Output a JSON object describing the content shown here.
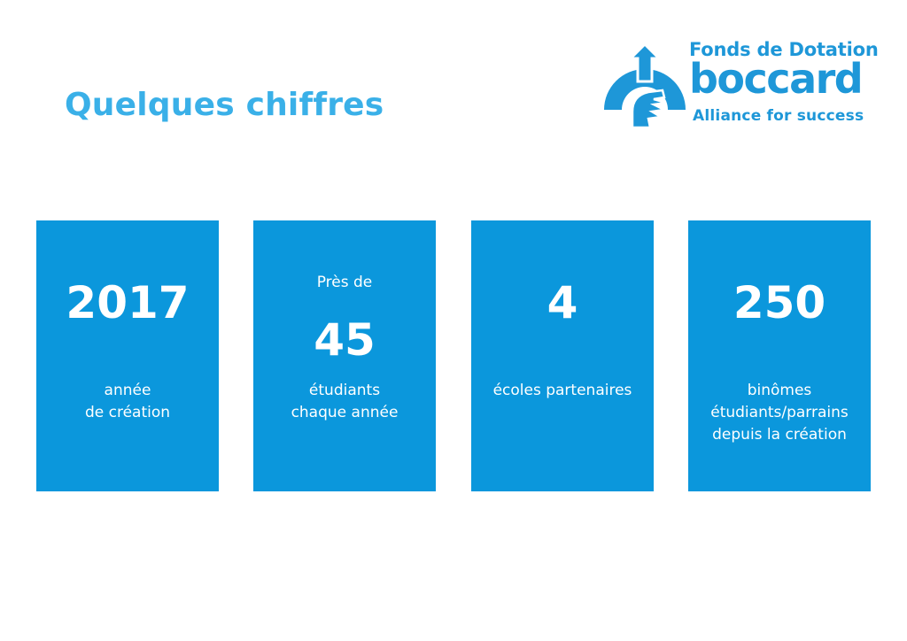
{
  "page": {
    "title": "Quelques chiffres"
  },
  "logo": {
    "line1": "Fonds de Dotation",
    "line2": "boccard",
    "line3": "Alliance for success",
    "icon": "rising-sun-arrow-logo-icon",
    "color": "#1e97d8"
  },
  "colors": {
    "title": "#3ab0e8",
    "card_background": "#0b97dc",
    "card_text": "#ffffff"
  },
  "stats": [
    {
      "prefix": "",
      "number": "2017",
      "label_lines": [
        "année",
        "de création"
      ]
    },
    {
      "prefix": "Près de",
      "number": "45",
      "label_lines": [
        "étudiants",
        "chaque année"
      ]
    },
    {
      "prefix": "",
      "number": "4",
      "label_lines": [
        "écoles partenaires"
      ]
    },
    {
      "prefix": "",
      "number": "250",
      "label_lines": [
        "binômes",
        "étudiants/parrains",
        "depuis la création"
      ]
    }
  ]
}
